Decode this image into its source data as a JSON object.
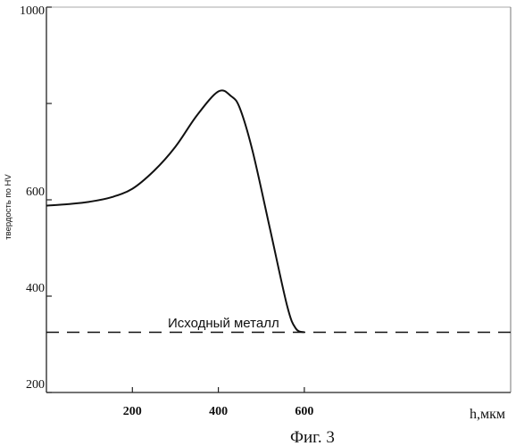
{
  "chart_data": {
    "type": "line",
    "xlabel": "h,мкм",
    "ylabel": "твердость по HV",
    "caption": "Фиг. 3",
    "xlim": [
      0,
      1080
    ],
    "ylim": [
      200,
      1000
    ],
    "x_ticks": [
      200,
      400,
      600
    ],
    "x_tick_labels": [
      "200",
      "400",
      "600"
    ],
    "y_ticks": [
      200,
      400,
      600,
      1000
    ],
    "y_tick_labels": [
      "200",
      "400",
      "600",
      "1000"
    ],
    "y_minor_ticks": [
      800
    ],
    "grid": false,
    "series": [
      {
        "x": [
          0,
          50,
          100,
          150,
          200,
          250,
          300,
          350,
          400,
          430,
          450,
          480,
          520,
          560,
          580,
          600
        ],
        "y": [
          588,
          591,
          596,
          605,
          623,
          660,
          710,
          775,
          825,
          815,
          790,
          700,
          540,
          380,
          333,
          325
        ],
        "style": "solid",
        "color": "#111111"
      }
    ],
    "reference_line": {
      "label": "Исходный металл",
      "y": 325,
      "style": "dashed",
      "color": "#111111"
    }
  }
}
